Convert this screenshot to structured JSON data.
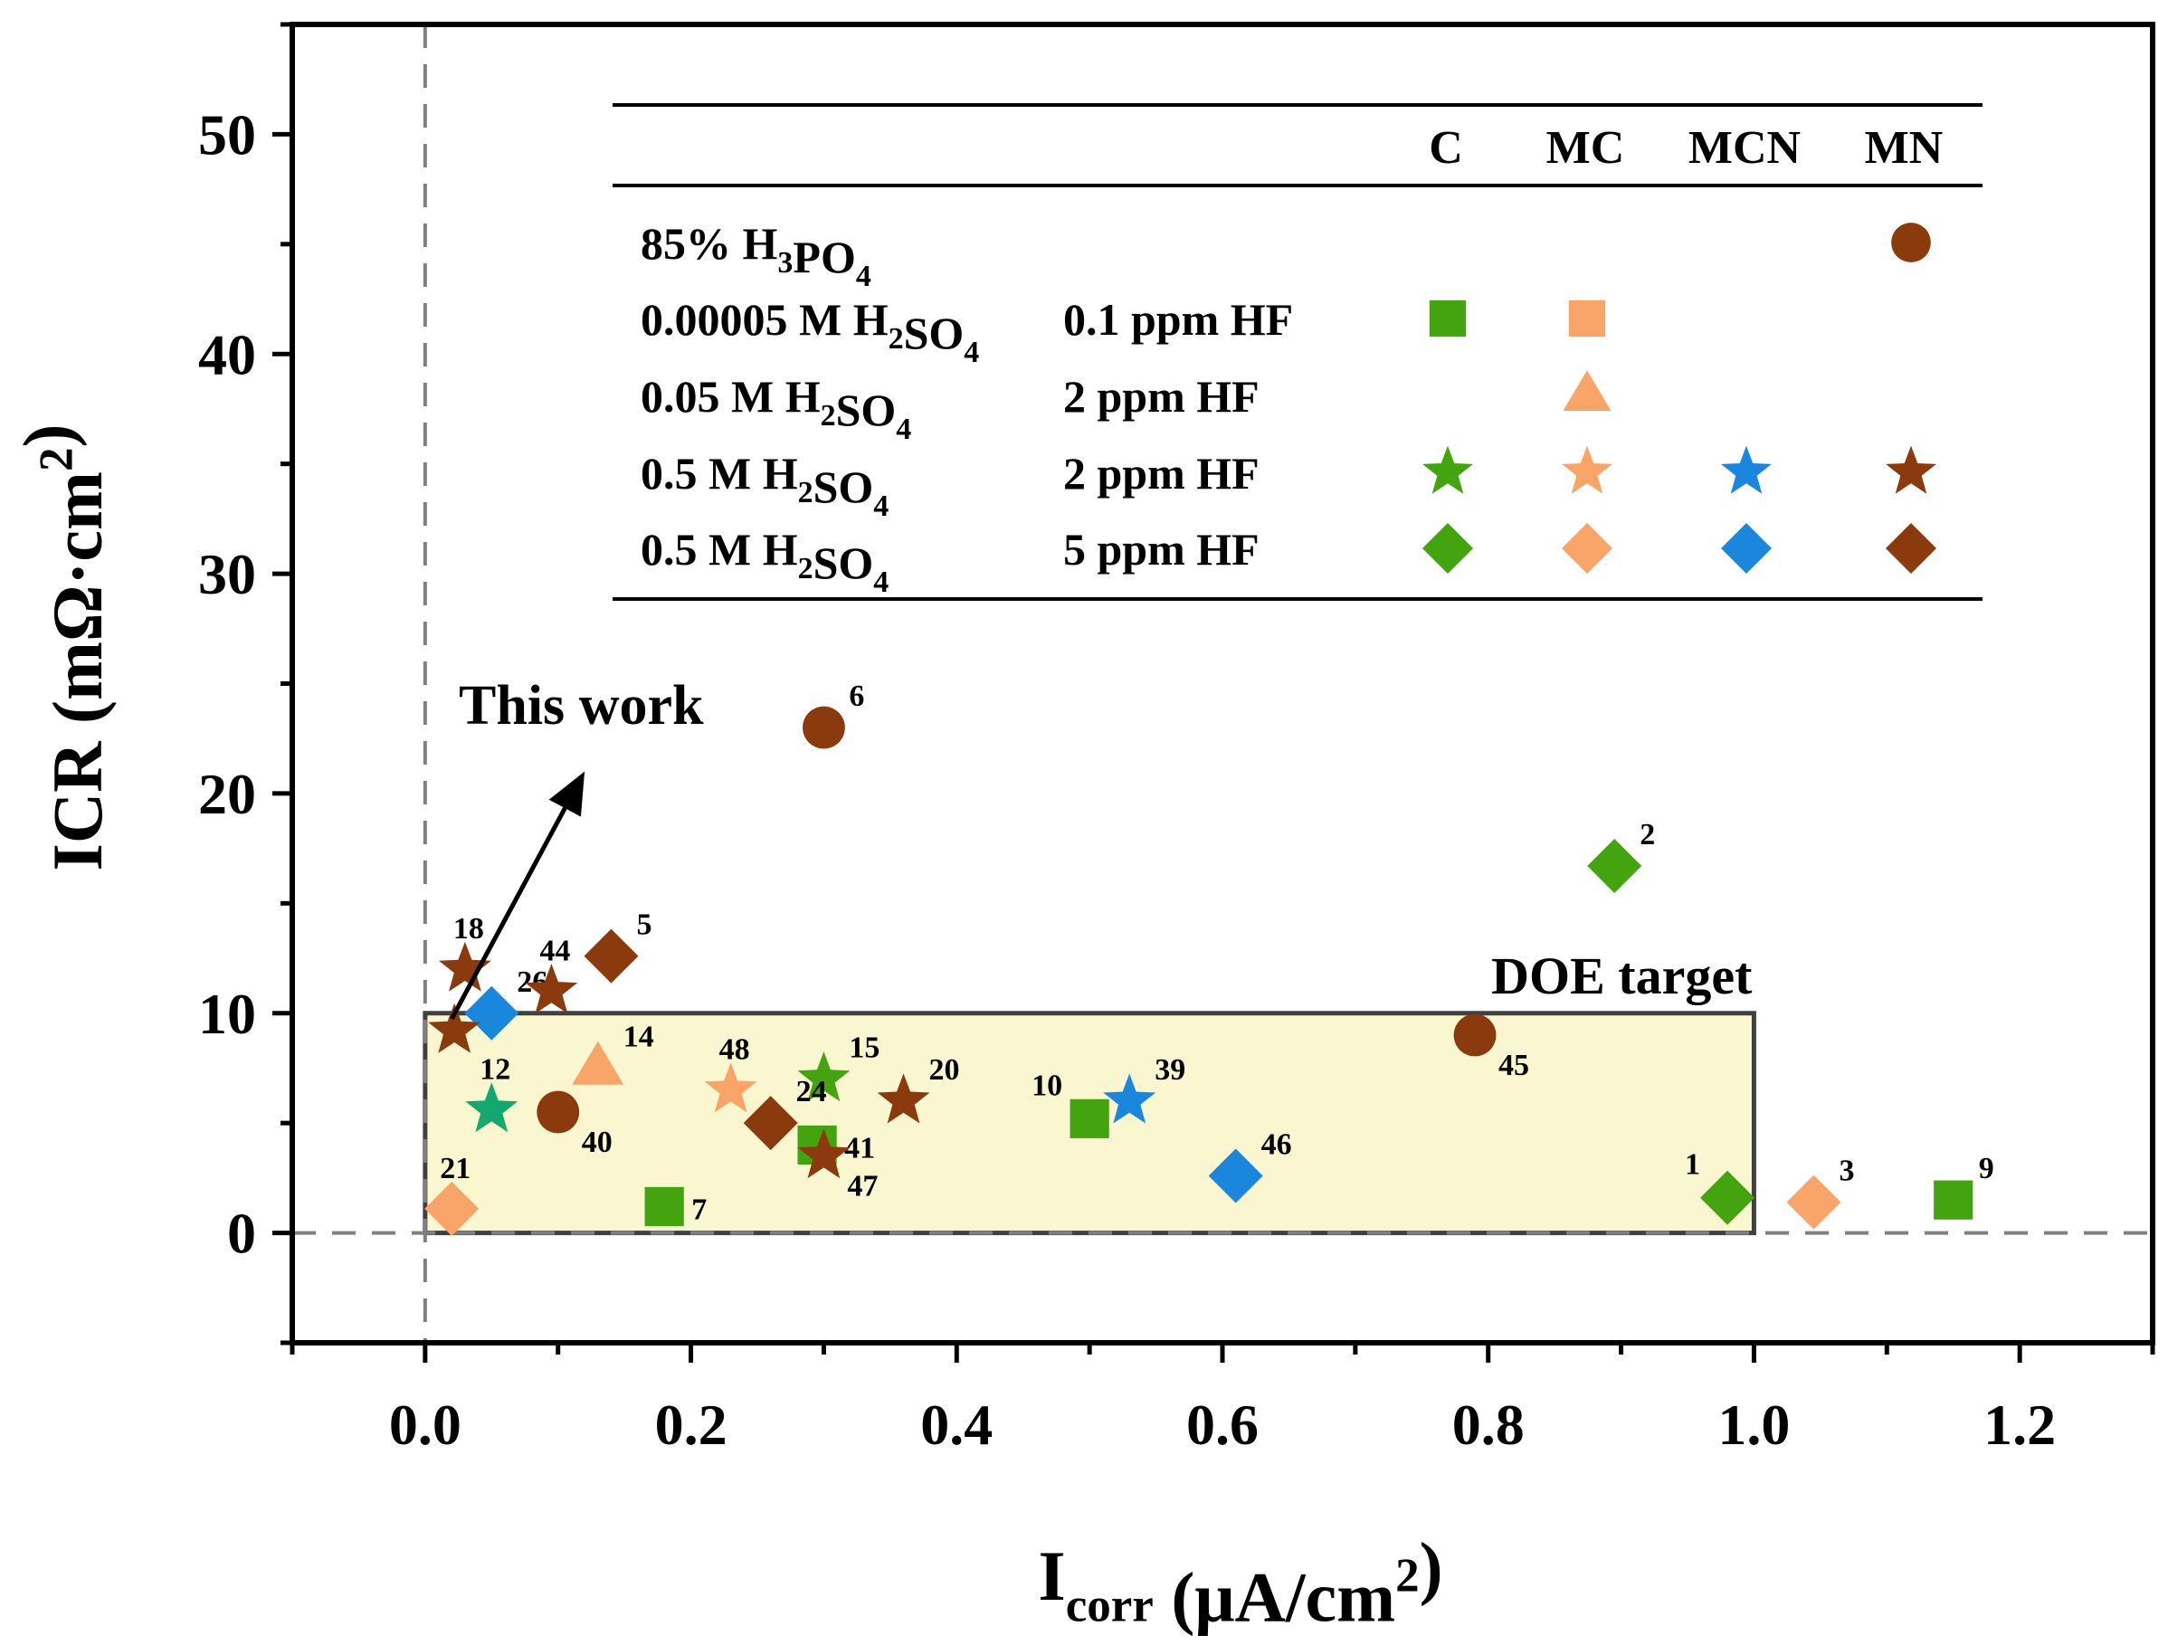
{
  "chart_data": {
    "type": "scatter",
    "xlabel": {
      "main": "I",
      "sub": "corr",
      "rest": " (μA/cm",
      "sup": "2",
      "close": ")"
    },
    "ylabel": {
      "main": "ICR (mΩ·cm",
      "sup": "2",
      "close": ")"
    },
    "xlim": [
      -0.1,
      1.3
    ],
    "ylim": [
      -5,
      55
    ],
    "x_ticks": [
      {
        "v": 0.0,
        "label": "0.0"
      },
      {
        "v": 0.2,
        "label": "0.2"
      },
      {
        "v": 0.4,
        "label": "0.4"
      },
      {
        "v": 0.6,
        "label": "0.6"
      },
      {
        "v": 0.8,
        "label": "0.8"
      },
      {
        "v": 1.0,
        "label": "1.0"
      },
      {
        "v": 1.2,
        "label": "1.2"
      }
    ],
    "y_ticks": [
      {
        "v": 0,
        "label": "0"
      },
      {
        "v": 10,
        "label": "10"
      },
      {
        "v": 20,
        "label": "20"
      },
      {
        "v": 30,
        "label": "30"
      },
      {
        "v": 40,
        "label": "40"
      },
      {
        "v": 50,
        "label": "50"
      }
    ],
    "reference_lines": {
      "x": 0,
      "y": 0
    },
    "doe_target": {
      "label": "DOE target",
      "x": [
        0,
        1.0
      ],
      "y": [
        0,
        10
      ]
    },
    "arrow_annotation": {
      "label": "This work",
      "from": [
        0.02,
        9
      ],
      "to": [
        0.12,
        21
      ]
    },
    "colors": {
      "C": "#43a40f",
      "MC": "#f9a56a",
      "MCN": "#1b87dc",
      "MN": "#8b3a0e",
      "teal": "#14a870",
      "target_fill": "#faf6d0",
      "target_stroke": "#404040",
      "ref_line": "#808080"
    },
    "legend": {
      "columns": [
        "C",
        "MC",
        "MCN",
        "MN"
      ],
      "rows": [
        {
          "electrolyte": [
            {
              "t": "85% H"
            },
            {
              "t": "3",
              "sub": true
            },
            {
              "t": "PO"
            },
            {
              "t": "4",
              "sub": true
            }
          ],
          "hf": "",
          "marker": "circle",
          "cells": [
            null,
            null,
            null,
            "MN"
          ]
        },
        {
          "electrolyte": [
            {
              "t": "0.00005 M H"
            },
            {
              "t": "2",
              "sub": true
            },
            {
              "t": "SO"
            },
            {
              "t": "4",
              "sub": true
            }
          ],
          "hf": "0.1 ppm HF",
          "marker": "square",
          "cells": [
            "C",
            "MC",
            null,
            null
          ]
        },
        {
          "electrolyte": [
            {
              "t": "0.05 M H"
            },
            {
              "t": "2",
              "sub": true
            },
            {
              "t": "SO"
            },
            {
              "t": "4",
              "sub": true
            }
          ],
          "hf": "2 ppm HF",
          "marker": "triangle",
          "cells": [
            null,
            "MC",
            null,
            null
          ]
        },
        {
          "electrolyte": [
            {
              "t": "0.5 M H"
            },
            {
              "t": "2",
              "sub": true
            },
            {
              "t": "SO"
            },
            {
              "t": "4",
              "sub": true
            }
          ],
          "hf": "2 ppm HF",
          "marker": "star",
          "cells": [
            "C",
            "MC",
            "MCN",
            "MN"
          ]
        },
        {
          "electrolyte": [
            {
              "t": "0.5 M H"
            },
            {
              "t": "2",
              "sub": true
            },
            {
              "t": "SO"
            },
            {
              "t": "4",
              "sub": true
            }
          ],
          "hf": "5 ppm HF",
          "marker": "diamond",
          "cells": [
            "C",
            "MC",
            "MCN",
            "MN"
          ]
        }
      ]
    },
    "points": [
      {
        "label": "1",
        "x": 0.98,
        "y": 1.6,
        "marker": "diamond",
        "group": "C",
        "lp": "ul"
      },
      {
        "label": "2",
        "x": 0.895,
        "y": 16.7,
        "marker": "diamond",
        "group": "C",
        "lp": "ur"
      },
      {
        "label": "3",
        "x": 1.045,
        "y": 1.4,
        "marker": "diamond",
        "group": "MC",
        "lp": "ur"
      },
      {
        "label": "5",
        "x": 0.14,
        "y": 12.6,
        "marker": "diamond",
        "group": "MN",
        "lp": "ur"
      },
      {
        "label": "6",
        "x": 0.3,
        "y": 23.0,
        "marker": "circle",
        "group": "MN",
        "lp": "ur"
      },
      {
        "label": "7",
        "x": 0.18,
        "y": 1.2,
        "marker": "square",
        "group": "C",
        "lp": "r"
      },
      {
        "label": "9",
        "x": 1.15,
        "y": 1.5,
        "marker": "square",
        "group": "C",
        "lp": "ur"
      },
      {
        "label": "10",
        "x": 0.5,
        "y": 5.2,
        "marker": "square",
        "group": "C",
        "lp": "ul"
      },
      {
        "label": "12",
        "x": 0.05,
        "y": 5.6,
        "marker": "star",
        "group": "teal",
        "lp": "u"
      },
      {
        "label": "14",
        "x": 0.13,
        "y": 7.5,
        "marker": "triangle",
        "group": "MC",
        "lp": "ur"
      },
      {
        "label": "15",
        "x": 0.3,
        "y": 7.0,
        "marker": "star",
        "group": "C",
        "lp": "ur"
      },
      {
        "label": "18",
        "x": 0.03,
        "y": 12.0,
        "marker": "star",
        "group": "MN",
        "lp": "u"
      },
      {
        "label": "20",
        "x": 0.36,
        "y": 6.0,
        "marker": "star",
        "group": "MN",
        "lp": "ur"
      },
      {
        "label": "21",
        "x": 0.02,
        "y": 1.1,
        "marker": "diamond",
        "group": "MC",
        "lp": "u"
      },
      {
        "label": "24",
        "x": 0.26,
        "y": 5.0,
        "marker": "diamond",
        "group": "MN",
        "lp": "ur"
      },
      {
        "label": "26",
        "x": 0.05,
        "y": 10.0,
        "marker": "diamond",
        "group": "MCN",
        "lp": "ur"
      },
      {
        "label": "39",
        "x": 0.53,
        "y": 6.0,
        "marker": "star",
        "group": "MCN",
        "lp": "ur"
      },
      {
        "label": "40",
        "x": 0.1,
        "y": 5.5,
        "marker": "circle",
        "group": "MN",
        "lp": "dr"
      },
      {
        "label": "41",
        "x": 0.295,
        "y": 4.0,
        "marker": "square",
        "group": "C",
        "lp": "r"
      },
      {
        "label": "44",
        "x": 0.095,
        "y": 11.0,
        "marker": "star",
        "group": "MN",
        "lp": "u"
      },
      {
        "label": "45",
        "x": 0.79,
        "y": 9.0,
        "marker": "circle",
        "group": "MN",
        "lp": "dr"
      },
      {
        "label": "46",
        "x": 0.61,
        "y": 2.6,
        "marker": "diamond",
        "group": "MCN",
        "lp": "ur"
      },
      {
        "label": "47",
        "x": 0.3,
        "y": 3.5,
        "marker": "star",
        "group": "MN",
        "lp": "dr"
      },
      {
        "label": "48",
        "x": 0.23,
        "y": 6.5,
        "marker": "star",
        "group": "MC",
        "lp": "u"
      },
      {
        "label": "",
        "x": 0.022,
        "y": 9.2,
        "marker": "star",
        "group": "MN",
        "lp": "none"
      }
    ]
  }
}
